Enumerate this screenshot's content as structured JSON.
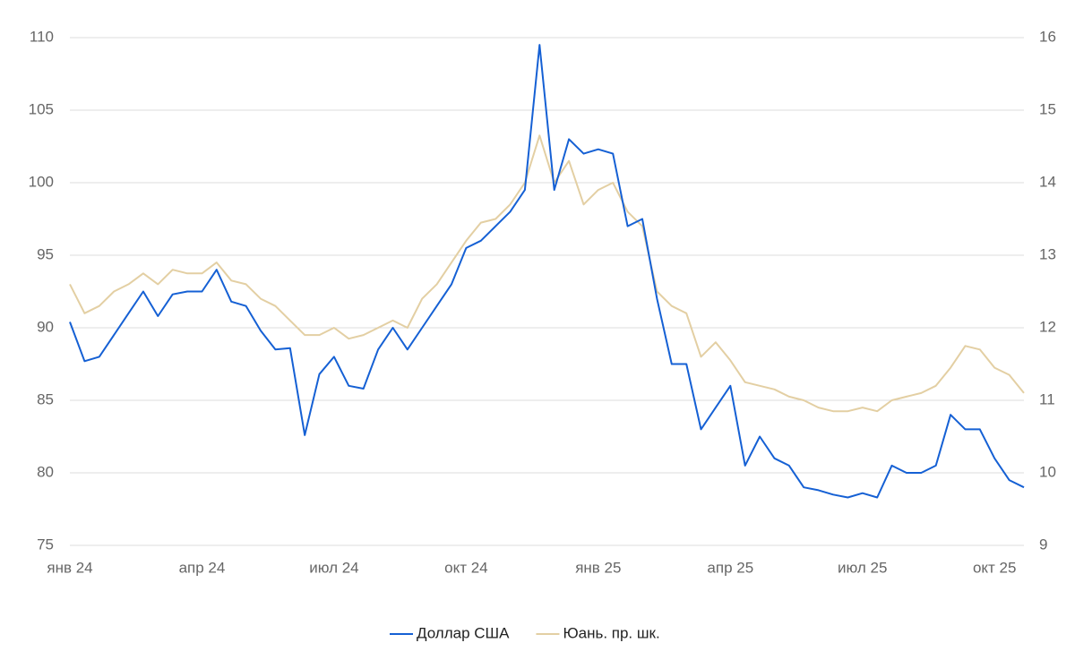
{
  "chart_data": {
    "type": "line",
    "categories": [
      "янв 24",
      null,
      null,
      null,
      null,
      null,
      null,
      null,
      null,
      "апр 24",
      null,
      null,
      null,
      null,
      null,
      null,
      null,
      null,
      "июл 24",
      null,
      null,
      null,
      null,
      null,
      null,
      null,
      null,
      "окт 24",
      null,
      null,
      null,
      null,
      null,
      null,
      null,
      null,
      "янв 25",
      null,
      null,
      null,
      null,
      null,
      null,
      null,
      null,
      "апр 25",
      null,
      null,
      null,
      null,
      null,
      null,
      null,
      null,
      "июл 25",
      null,
      null,
      null,
      null,
      null,
      null,
      null,
      null,
      "окт 25",
      null,
      null
    ],
    "series": [
      {
        "name": "Доллар США",
        "color": "#1560d4",
        "values": [
          90.4,
          87.7,
          88.0,
          89.5,
          91.0,
          92.5,
          90.8,
          92.3,
          92.5,
          92.5,
          94.0,
          91.8,
          91.5,
          89.8,
          88.5,
          88.6,
          82.6,
          86.8,
          88.0,
          86.0,
          85.8,
          88.5,
          90.0,
          88.5,
          90.0,
          91.5,
          93.0,
          95.5,
          96.0,
          97.0,
          98.0,
          99.5,
          109.5,
          99.5,
          103.0,
          102.0,
          102.3,
          102.0,
          97.0,
          97.5,
          92.0,
          87.5,
          87.5,
          83.0,
          84.5,
          86.0,
          80.5,
          82.5,
          81.0,
          80.5,
          79.0,
          78.8,
          78.5,
          78.3,
          78.6,
          78.3,
          80.5,
          80.0,
          80.0,
          80.5,
          84.0,
          83.0,
          83.0,
          81.0,
          79.5,
          79.0
        ]
      },
      {
        "name": "Юань. пр. шк.",
        "color": "#e3cfa3",
        "axis": "y2",
        "values": [
          12.6,
          12.2,
          12.3,
          12.5,
          12.6,
          12.75,
          12.6,
          12.8,
          12.75,
          12.75,
          12.9,
          12.65,
          12.6,
          12.4,
          12.3,
          12.1,
          11.9,
          11.9,
          12.0,
          11.85,
          11.9,
          12.0,
          12.1,
          12.0,
          12.4,
          12.6,
          12.9,
          13.2,
          13.45,
          13.5,
          13.7,
          14.0,
          14.65,
          14.0,
          14.3,
          13.7,
          13.9,
          14.0,
          13.6,
          13.4,
          12.5,
          12.3,
          12.2,
          11.6,
          11.8,
          11.55,
          11.25,
          11.2,
          11.15,
          11.05,
          11.0,
          10.9,
          10.85,
          10.85,
          10.9,
          10.85,
          11.0,
          11.05,
          11.1,
          11.2,
          11.45,
          11.75,
          11.7,
          11.45,
          11.35,
          11.1
        ]
      }
    ],
    "ylim": [
      75,
      110
    ],
    "yticks": [
      75,
      80,
      85,
      90,
      95,
      100,
      105,
      110
    ],
    "y2lim": [
      9,
      16
    ],
    "y2ticks": [
      9,
      10,
      11,
      12,
      13,
      14,
      15,
      16
    ],
    "grid": true,
    "legend": "bottom"
  }
}
